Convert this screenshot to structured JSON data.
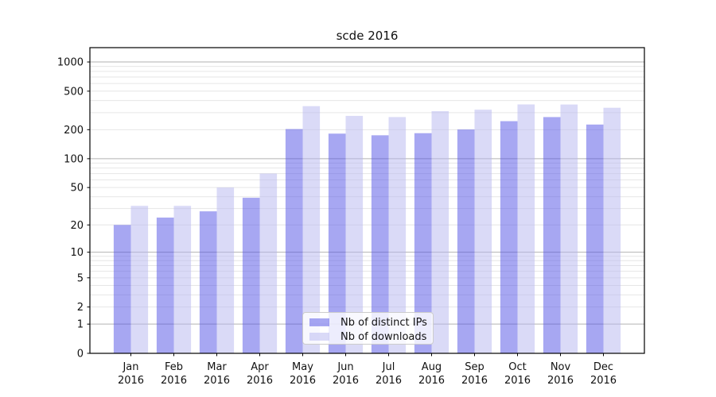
{
  "chart_data": {
    "type": "bar",
    "title": "scde 2016",
    "categories": [
      "Jan",
      "Feb",
      "Mar",
      "Apr",
      "May",
      "Jun",
      "Jul",
      "Aug",
      "Sep",
      "Oct",
      "Nov",
      "Dec"
    ],
    "x_year": "2016",
    "series": [
      {
        "name": "Nb of distinct IPs",
        "color": "rgba(80,80,230,0.5)",
        "values": [
          20,
          24,
          28,
          39,
          203,
          182,
          175,
          184,
          201,
          245,
          270,
          226
        ]
      },
      {
        "name": "Nb of downloads",
        "color": "rgba(181,181,239,0.5)",
        "values": [
          32,
          32,
          50,
          70,
          350,
          278,
          270,
          311,
          322,
          365,
          364,
          337
        ]
      }
    ],
    "y_ticks": [
      0,
      1,
      2,
      5,
      10,
      20,
      50,
      100,
      200,
      500,
      1000
    ],
    "y_scale": "log10(value+1)",
    "ylim": [
      0,
      1413
    ],
    "grid": "horizontal",
    "legend_position": "lower center inside",
    "colors": {
      "major_grid": "#b2b2b2",
      "minor_grid": "#e6e6e6",
      "spine": "#000000",
      "text": "#111111"
    }
  }
}
